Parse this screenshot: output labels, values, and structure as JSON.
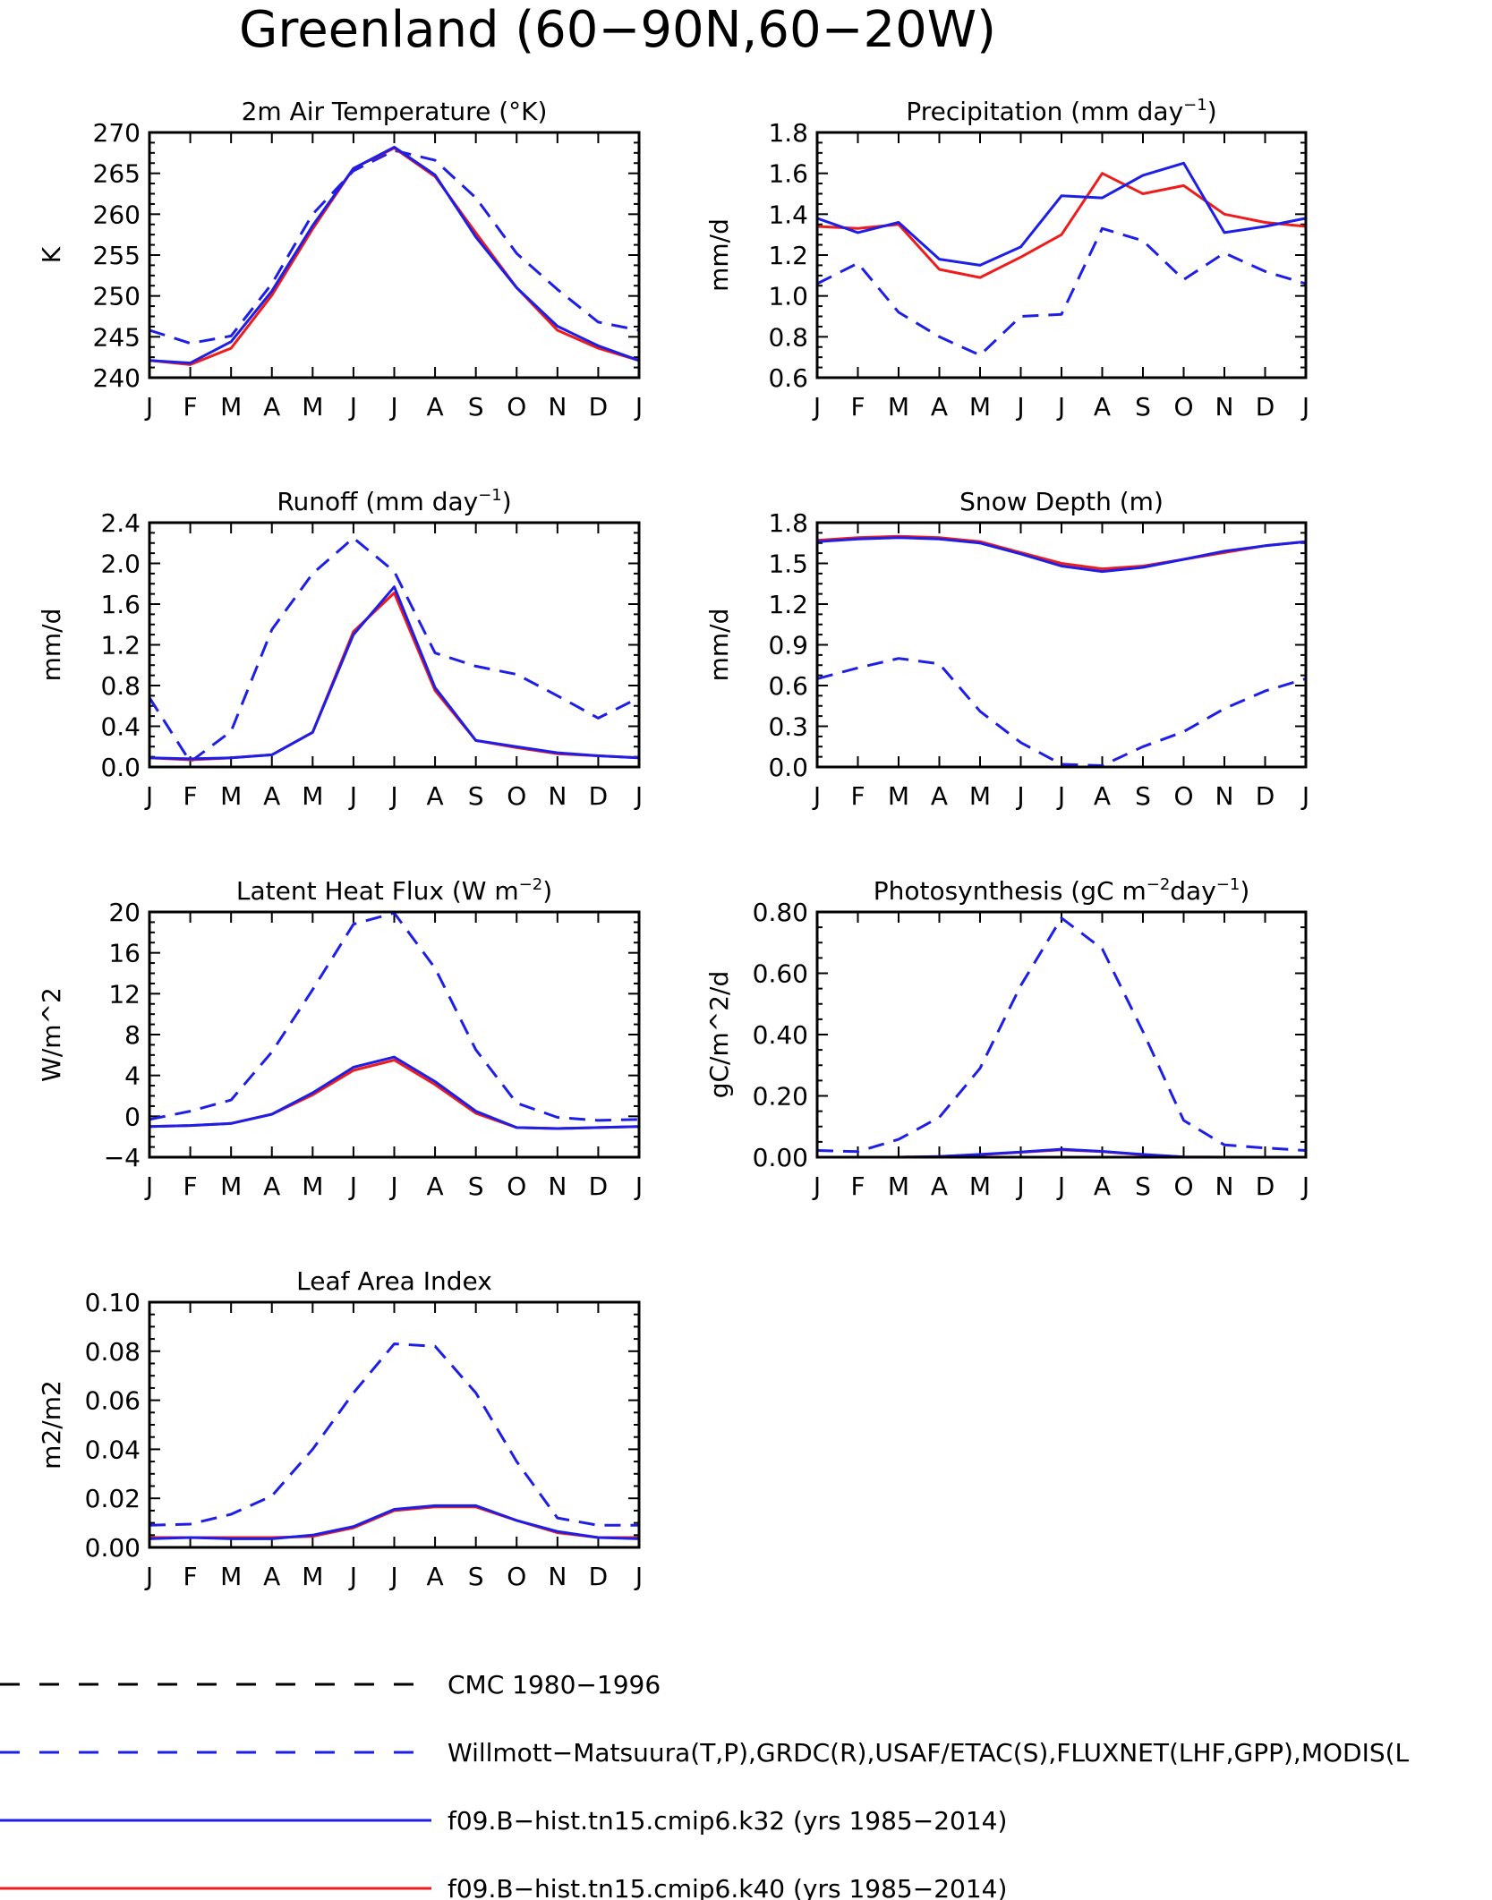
{
  "title": "Greenland (60−90N,60−20W)",
  "months": [
    "J",
    "F",
    "M",
    "A",
    "M",
    "J",
    "J",
    "A",
    "S",
    "O",
    "N",
    "D",
    "J"
  ],
  "colors": {
    "obs": "#1d1ee8",
    "k32": "#1d1ee8",
    "k40": "#ee1c1c",
    "cmc": "#000000"
  },
  "legend": [
    {
      "key": "cmc",
      "label": "CMC 1980−1996",
      "style": "dashed",
      "color": "#000000"
    },
    {
      "key": "obs",
      "label": "Willmott−Matsuura(T,P),GRDC(R),USAF/ETAC(S),FLUXNET(LHF,GPP),MODIS(L",
      "style": "dashed",
      "color": "#1d1ee8"
    },
    {
      "key": "k32",
      "label": "f09.B−hist.tn15.cmip6.k32 (yrs 1985−2014)",
      "style": "solid",
      "color": "#1d1ee8"
    },
    {
      "key": "k40",
      "label": "f09.B−hist.tn15.cmip6.k40 (yrs 1985−2014)",
      "style": "solid",
      "color": "#ee1c1c"
    }
  ],
  "chart_data": [
    {
      "type": "line",
      "title": "2m Air Temperature (°K)",
      "ylabel": "K",
      "ylim": [
        240,
        270
      ],
      "yticks": [
        "240",
        "245",
        "250",
        "255",
        "260",
        "265",
        "270"
      ],
      "categories": [
        "J",
        "F",
        "M",
        "A",
        "M",
        "J",
        "J",
        "A",
        "S",
        "O",
        "N",
        "D",
        "J"
      ],
      "series": [
        {
          "key": "obs",
          "values": [
            245.8,
            244.2,
            245.1,
            251.5,
            260.0,
            265.3,
            267.8,
            266.6,
            262.0,
            255.2,
            250.8,
            246.8,
            245.8
          ]
        },
        {
          "key": "k40",
          "values": [
            242.1,
            241.6,
            243.6,
            250.1,
            258.2,
            265.6,
            268.1,
            264.6,
            257.7,
            251.0,
            245.8,
            243.6,
            242.1
          ]
        },
        {
          "key": "k32",
          "values": [
            242.1,
            241.8,
            244.4,
            250.6,
            258.6,
            265.6,
            268.2,
            264.8,
            257.2,
            251.0,
            246.3,
            243.9,
            242.1
          ]
        }
      ]
    },
    {
      "type": "line",
      "title": "Precipitation (mm day",
      "title_sup": "−1",
      "title_end": ")",
      "ylabel": "mm/d",
      "ylim": [
        0.6,
        1.8
      ],
      "yticks": [
        "0.6",
        "0.8",
        "1.0",
        "1.2",
        "1.4",
        "1.6",
        "1.8"
      ],
      "categories": [
        "J",
        "F",
        "M",
        "A",
        "M",
        "J",
        "J",
        "A",
        "S",
        "O",
        "N",
        "D",
        "J"
      ],
      "series": [
        {
          "key": "obs",
          "values": [
            1.06,
            1.16,
            0.92,
            0.8,
            0.71,
            0.9,
            0.91,
            1.33,
            1.27,
            1.08,
            1.21,
            1.12,
            1.06
          ]
        },
        {
          "key": "k40",
          "values": [
            1.34,
            1.33,
            1.35,
            1.13,
            1.09,
            1.19,
            1.3,
            1.6,
            1.5,
            1.54,
            1.4,
            1.36,
            1.34
          ]
        },
        {
          "key": "k32",
          "values": [
            1.38,
            1.31,
            1.36,
            1.18,
            1.15,
            1.24,
            1.49,
            1.48,
            1.59,
            1.65,
            1.31,
            1.34,
            1.38
          ]
        }
      ]
    },
    {
      "type": "line",
      "title": "Runoff (mm day",
      "title_sup": "−1",
      "title_end": ")",
      "ylabel": "mm/d",
      "ylim": [
        0.0,
        2.4
      ],
      "yticks": [
        "0.0",
        "0.4",
        "0.8",
        "1.2",
        "1.6",
        "2.0",
        "2.4"
      ],
      "categories": [
        "J",
        "F",
        "M",
        "A",
        "M",
        "J",
        "J",
        "A",
        "S",
        "O",
        "N",
        "D",
        "J"
      ],
      "series": [
        {
          "key": "obs",
          "values": [
            0.68,
            0.05,
            0.35,
            1.35,
            1.9,
            2.25,
            1.92,
            1.12,
            0.99,
            0.91,
            0.7,
            0.48,
            0.68
          ]
        },
        {
          "key": "k40",
          "values": [
            0.09,
            0.07,
            0.09,
            0.12,
            0.34,
            1.33,
            1.71,
            0.75,
            0.26,
            0.19,
            0.13,
            0.11,
            0.09
          ]
        },
        {
          "key": "k32",
          "values": [
            0.09,
            0.08,
            0.09,
            0.12,
            0.34,
            1.3,
            1.77,
            0.78,
            0.26,
            0.2,
            0.14,
            0.11,
            0.09
          ]
        }
      ]
    },
    {
      "type": "line",
      "title": "Snow Depth (m)",
      "ylabel": "mm/d",
      "ylim": [
        0.0,
        1.8
      ],
      "yticks": [
        "0.0",
        "0.3",
        "0.6",
        "0.9",
        "1.2",
        "1.5",
        "1.8"
      ],
      "categories": [
        "J",
        "F",
        "M",
        "A",
        "M",
        "J",
        "J",
        "A",
        "S",
        "O",
        "N",
        "D",
        "J"
      ],
      "series": [
        {
          "key": "cmc",
          "values": [
            0.0,
            0.0,
            0.0,
            0.0,
            0.0,
            0.0,
            0.0,
            0.0,
            0.0,
            0.0,
            0.0,
            0.0,
            0.0
          ]
        },
        {
          "key": "obs",
          "values": [
            0.65,
            0.73,
            0.8,
            0.76,
            0.41,
            0.18,
            0.02,
            0.01,
            0.15,
            0.26,
            0.43,
            0.56,
            0.65
          ]
        },
        {
          "key": "k40",
          "values": [
            1.67,
            1.69,
            1.7,
            1.69,
            1.66,
            1.58,
            1.5,
            1.46,
            1.48,
            1.53,
            1.58,
            1.63,
            1.66
          ]
        },
        {
          "key": "k32",
          "values": [
            1.66,
            1.68,
            1.69,
            1.68,
            1.65,
            1.57,
            1.48,
            1.44,
            1.47,
            1.53,
            1.59,
            1.63,
            1.66
          ]
        }
      ]
    },
    {
      "type": "line",
      "title": "Latent Heat Flux (W m",
      "title_sup": "−2",
      "title_end": ")",
      "ylabel": "W/m^2",
      "ylim": [
        -4,
        20
      ],
      "yticks": [
        "−4",
        "0",
        "4",
        "8",
        "12",
        "16",
        "20"
      ],
      "categories": [
        "J",
        "F",
        "M",
        "A",
        "M",
        "J",
        "J",
        "A",
        "S",
        "O",
        "N",
        "D",
        "J"
      ],
      "series": [
        {
          "key": "obs",
          "values": [
            -0.3,
            0.5,
            1.6,
            6.3,
            12.4,
            18.8,
            19.9,
            14.5,
            6.5,
            1.3,
            -0.1,
            -0.4,
            -0.3
          ]
        },
        {
          "key": "k40",
          "values": [
            -1.0,
            -0.9,
            -0.7,
            0.2,
            2.1,
            4.5,
            5.5,
            3.1,
            0.3,
            -1.1,
            -1.2,
            -1.1,
            -1.0
          ]
        },
        {
          "key": "k32",
          "values": [
            -1.0,
            -0.9,
            -0.7,
            0.2,
            2.3,
            4.8,
            5.8,
            3.4,
            0.5,
            -1.1,
            -1.2,
            -1.1,
            -1.0
          ]
        }
      ]
    },
    {
      "type": "line",
      "title": "Photosynthesis (gC m",
      "title_sup": "−2",
      "title_mid": "day",
      "title_sup2": "−1",
      "title_end": ")",
      "ylabel": "gC/m^2/d",
      "ylim": [
        0.0,
        0.8
      ],
      "yticks": [
        "0.00",
        "0.20",
        "0.40",
        "0.60",
        "0.80"
      ],
      "categories": [
        "J",
        "F",
        "M",
        "A",
        "M",
        "J",
        "J",
        "A",
        "S",
        "O",
        "N",
        "D",
        "J"
      ],
      "series": [
        {
          "key": "obs",
          "values": [
            0.022,
            0.018,
            0.058,
            0.13,
            0.29,
            0.56,
            0.78,
            0.68,
            0.41,
            0.12,
            0.04,
            0.03,
            0.022
          ]
        },
        {
          "key": "k40",
          "values": [
            0.0,
            0.0,
            0.0,
            0.002,
            0.008,
            0.016,
            0.024,
            0.018,
            0.008,
            0.001,
            0.0,
            0.0,
            0.0
          ]
        },
        {
          "key": "k32",
          "values": [
            0.0,
            0.0,
            0.0,
            0.002,
            0.009,
            0.017,
            0.026,
            0.019,
            0.009,
            0.001,
            0.0,
            0.0,
            0.0
          ]
        }
      ]
    },
    {
      "type": "line",
      "title": "Leaf Area Index",
      "ylabel": "m2/m2",
      "ylim": [
        0.0,
        0.1
      ],
      "yticks": [
        "0.00",
        "0.02",
        "0.04",
        "0.06",
        "0.08",
        "0.10"
      ],
      "categories": [
        "J",
        "F",
        "M",
        "A",
        "M",
        "J",
        "J",
        "A",
        "S",
        "O",
        "N",
        "D",
        "J"
      ],
      "series": [
        {
          "key": "obs",
          "values": [
            0.009,
            0.0095,
            0.0135,
            0.021,
            0.04,
            0.063,
            0.083,
            0.082,
            0.063,
            0.035,
            0.012,
            0.009,
            0.009
          ]
        },
        {
          "key": "k40",
          "values": [
            0.004,
            0.004,
            0.004,
            0.004,
            0.0045,
            0.008,
            0.015,
            0.0165,
            0.0165,
            0.011,
            0.006,
            0.004,
            0.004
          ]
        },
        {
          "key": "k32",
          "values": [
            0.0035,
            0.004,
            0.0035,
            0.0035,
            0.005,
            0.0085,
            0.0155,
            0.017,
            0.017,
            0.011,
            0.0065,
            0.004,
            0.0035
          ]
        }
      ]
    }
  ]
}
